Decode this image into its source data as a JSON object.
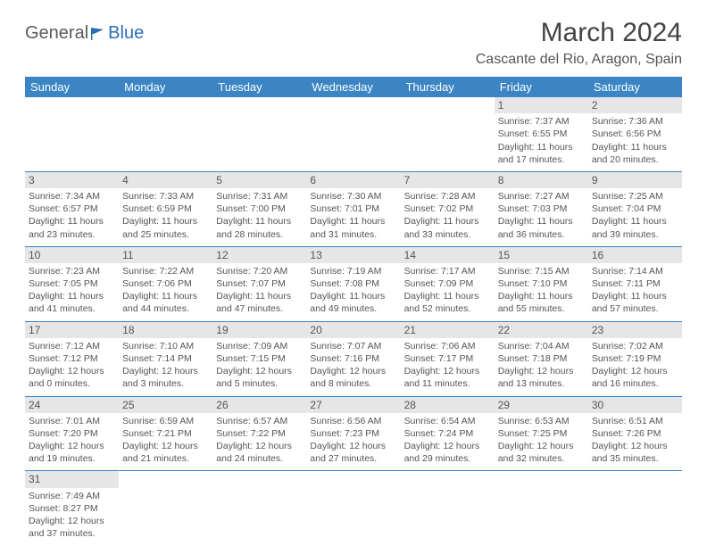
{
  "logo": {
    "text1": "General",
    "text2": "Blue"
  },
  "title": "March 2024",
  "location": "Cascante del Rio, Aragon, Spain",
  "colors": {
    "header_bg": "#3b85c5",
    "header_fg": "#ffffff",
    "daynum_bg": "#e6e6e6",
    "body_text": "#555555"
  },
  "day_headers": [
    "Sunday",
    "Monday",
    "Tuesday",
    "Wednesday",
    "Thursday",
    "Friday",
    "Saturday"
  ],
  "weeks": [
    [
      null,
      null,
      null,
      null,
      null,
      {
        "n": "1",
        "sr": "Sunrise: 7:37 AM",
        "ss": "Sunset: 6:55 PM",
        "dl": "Daylight: 11 hours and 17 minutes."
      },
      {
        "n": "2",
        "sr": "Sunrise: 7:36 AM",
        "ss": "Sunset: 6:56 PM",
        "dl": "Daylight: 11 hours and 20 minutes."
      }
    ],
    [
      {
        "n": "3",
        "sr": "Sunrise: 7:34 AM",
        "ss": "Sunset: 6:57 PM",
        "dl": "Daylight: 11 hours and 23 minutes."
      },
      {
        "n": "4",
        "sr": "Sunrise: 7:33 AM",
        "ss": "Sunset: 6:59 PM",
        "dl": "Daylight: 11 hours and 25 minutes."
      },
      {
        "n": "5",
        "sr": "Sunrise: 7:31 AM",
        "ss": "Sunset: 7:00 PM",
        "dl": "Daylight: 11 hours and 28 minutes."
      },
      {
        "n": "6",
        "sr": "Sunrise: 7:30 AM",
        "ss": "Sunset: 7:01 PM",
        "dl": "Daylight: 11 hours and 31 minutes."
      },
      {
        "n": "7",
        "sr": "Sunrise: 7:28 AM",
        "ss": "Sunset: 7:02 PM",
        "dl": "Daylight: 11 hours and 33 minutes."
      },
      {
        "n": "8",
        "sr": "Sunrise: 7:27 AM",
        "ss": "Sunset: 7:03 PM",
        "dl": "Daylight: 11 hours and 36 minutes."
      },
      {
        "n": "9",
        "sr": "Sunrise: 7:25 AM",
        "ss": "Sunset: 7:04 PM",
        "dl": "Daylight: 11 hours and 39 minutes."
      }
    ],
    [
      {
        "n": "10",
        "sr": "Sunrise: 7:23 AM",
        "ss": "Sunset: 7:05 PM",
        "dl": "Daylight: 11 hours and 41 minutes."
      },
      {
        "n": "11",
        "sr": "Sunrise: 7:22 AM",
        "ss": "Sunset: 7:06 PM",
        "dl": "Daylight: 11 hours and 44 minutes."
      },
      {
        "n": "12",
        "sr": "Sunrise: 7:20 AM",
        "ss": "Sunset: 7:07 PM",
        "dl": "Daylight: 11 hours and 47 minutes."
      },
      {
        "n": "13",
        "sr": "Sunrise: 7:19 AM",
        "ss": "Sunset: 7:08 PM",
        "dl": "Daylight: 11 hours and 49 minutes."
      },
      {
        "n": "14",
        "sr": "Sunrise: 7:17 AM",
        "ss": "Sunset: 7:09 PM",
        "dl": "Daylight: 11 hours and 52 minutes."
      },
      {
        "n": "15",
        "sr": "Sunrise: 7:15 AM",
        "ss": "Sunset: 7:10 PM",
        "dl": "Daylight: 11 hours and 55 minutes."
      },
      {
        "n": "16",
        "sr": "Sunrise: 7:14 AM",
        "ss": "Sunset: 7:11 PM",
        "dl": "Daylight: 11 hours and 57 minutes."
      }
    ],
    [
      {
        "n": "17",
        "sr": "Sunrise: 7:12 AM",
        "ss": "Sunset: 7:12 PM",
        "dl": "Daylight: 12 hours and 0 minutes."
      },
      {
        "n": "18",
        "sr": "Sunrise: 7:10 AM",
        "ss": "Sunset: 7:14 PM",
        "dl": "Daylight: 12 hours and 3 minutes."
      },
      {
        "n": "19",
        "sr": "Sunrise: 7:09 AM",
        "ss": "Sunset: 7:15 PM",
        "dl": "Daylight: 12 hours and 5 minutes."
      },
      {
        "n": "20",
        "sr": "Sunrise: 7:07 AM",
        "ss": "Sunset: 7:16 PM",
        "dl": "Daylight: 12 hours and 8 minutes."
      },
      {
        "n": "21",
        "sr": "Sunrise: 7:06 AM",
        "ss": "Sunset: 7:17 PM",
        "dl": "Daylight: 12 hours and 11 minutes."
      },
      {
        "n": "22",
        "sr": "Sunrise: 7:04 AM",
        "ss": "Sunset: 7:18 PM",
        "dl": "Daylight: 12 hours and 13 minutes."
      },
      {
        "n": "23",
        "sr": "Sunrise: 7:02 AM",
        "ss": "Sunset: 7:19 PM",
        "dl": "Daylight: 12 hours and 16 minutes."
      }
    ],
    [
      {
        "n": "24",
        "sr": "Sunrise: 7:01 AM",
        "ss": "Sunset: 7:20 PM",
        "dl": "Daylight: 12 hours and 19 minutes."
      },
      {
        "n": "25",
        "sr": "Sunrise: 6:59 AM",
        "ss": "Sunset: 7:21 PM",
        "dl": "Daylight: 12 hours and 21 minutes."
      },
      {
        "n": "26",
        "sr": "Sunrise: 6:57 AM",
        "ss": "Sunset: 7:22 PM",
        "dl": "Daylight: 12 hours and 24 minutes."
      },
      {
        "n": "27",
        "sr": "Sunrise: 6:56 AM",
        "ss": "Sunset: 7:23 PM",
        "dl": "Daylight: 12 hours and 27 minutes."
      },
      {
        "n": "28",
        "sr": "Sunrise: 6:54 AM",
        "ss": "Sunset: 7:24 PM",
        "dl": "Daylight: 12 hours and 29 minutes."
      },
      {
        "n": "29",
        "sr": "Sunrise: 6:53 AM",
        "ss": "Sunset: 7:25 PM",
        "dl": "Daylight: 12 hours and 32 minutes."
      },
      {
        "n": "30",
        "sr": "Sunrise: 6:51 AM",
        "ss": "Sunset: 7:26 PM",
        "dl": "Daylight: 12 hours and 35 minutes."
      }
    ],
    [
      {
        "n": "31",
        "sr": "Sunrise: 7:49 AM",
        "ss": "Sunset: 8:27 PM",
        "dl": "Daylight: 12 hours and 37 minutes."
      },
      null,
      null,
      null,
      null,
      null,
      null
    ]
  ]
}
